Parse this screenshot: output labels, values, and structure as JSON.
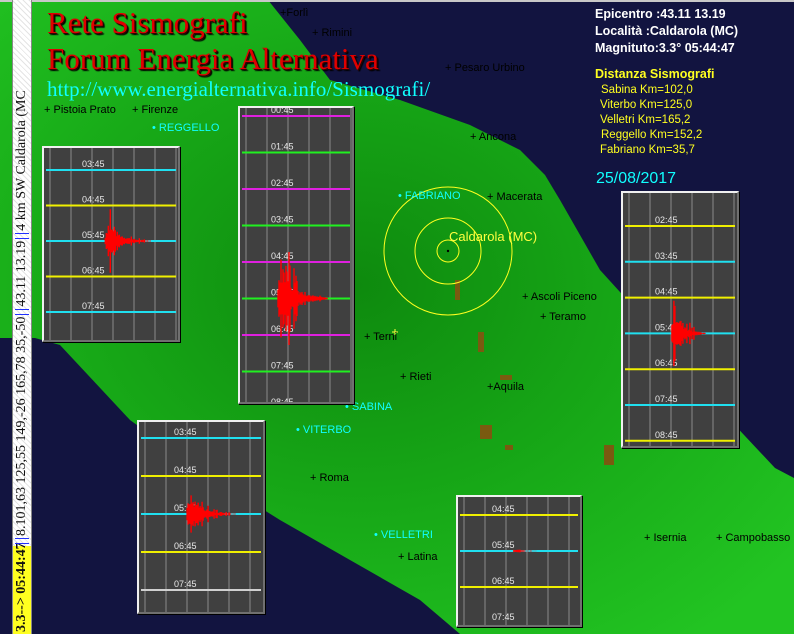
{
  "header": {
    "title_line1": "Rete Sismografi",
    "title_line2": "Forum Energia Alternativa",
    "url": "http://www.energialternativa.info/Sismografi/"
  },
  "event": {
    "epicentro": "Epicentro :43.11 13.19",
    "localita": "Località :Caldarola (MC)",
    "magnitudo": "Magnituto:3.3° 05:44:47",
    "date": "25/08/2017",
    "epicenter_label": "Caldarola (MC)"
  },
  "distances": {
    "title": "Distanza Sismografi",
    "items": [
      "Sabina Km=102,0",
      "Viterbo Km=125,0",
      "Velletri Km=165,2",
      "Reggello Km=152,2",
      "Fabriano Km=35,7"
    ]
  },
  "ticker": {
    "magnitude": "3.3--> 05:44:47",
    "distances": "8.101,63 125,55 149,-26 165,78 35,-50",
    "coords": "43.11 13.19",
    "place": "4 km SW Caldarola (MC"
  },
  "map": {
    "cities": [
      "+Forlì",
      "+ Rimini",
      "+ Pistoia Prato",
      "+ Firenze",
      "+ Pesaro Urbino",
      "+ Ancona",
      "+ Macerata",
      "+ Ascoli Piceno",
      "+ Teramo",
      "+ Terni",
      "+ Rieti",
      "+Aquila",
      "+ Roma",
      "+ Latina",
      "+ Isernia",
      "+ Campobasso"
    ],
    "stations": [
      "REGGELLO",
      "FABRIANO",
      "SABINA",
      "VITERBO",
      "VELLETRI"
    ],
    "colors": {
      "land": "#12b012",
      "sea": "#121440",
      "station": "#10ffff",
      "epicenter": "#ffff40"
    }
  },
  "seismographs": [
    {
      "labels": [
        "03:45",
        "04:45",
        "05:45",
        "06:45",
        "07:45"
      ],
      "line_colors": [
        "#20e0f0",
        "#f0f000",
        "#20e0f0",
        "#f0f000",
        "#20e0f0"
      ]
    },
    {
      "labels": [
        "00:45",
        "01:45",
        "02:45",
        "03:45",
        "04:45",
        "05:45",
        "06:45",
        "07:45",
        "08:45"
      ],
      "line_colors": [
        "#e020e0",
        "#20f020",
        "#e020e0",
        "#20f020",
        "#e020e0",
        "#20f020",
        "#e020e0",
        "#20f020",
        ""
      ]
    },
    {
      "labels": [
        "02:45",
        "03:45",
        "04:45",
        "05:45",
        "06:45",
        "07:45",
        "08:45"
      ],
      "line_colors": [
        "#f0f000",
        "#20e0f0",
        "#f0f000",
        "#20e0f0",
        "#f0f000",
        "#20e0f0",
        "#f0f000"
      ]
    },
    {
      "labels": [
        "03:45",
        "04:45",
        "05:45",
        "06:45",
        "07:45"
      ],
      "line_colors": [
        "#20e0f0",
        "#f0f000",
        "#20e0f0",
        "#f0f000",
        "#d0d0d0"
      ]
    },
    {
      "labels": [
        "04:45",
        "05:45",
        "06:45",
        "07:45"
      ],
      "line_colors": [
        "#f0f000",
        "#20e0f0",
        "#f0f000",
        ""
      ]
    }
  ],
  "signal_color": "#ff0000"
}
